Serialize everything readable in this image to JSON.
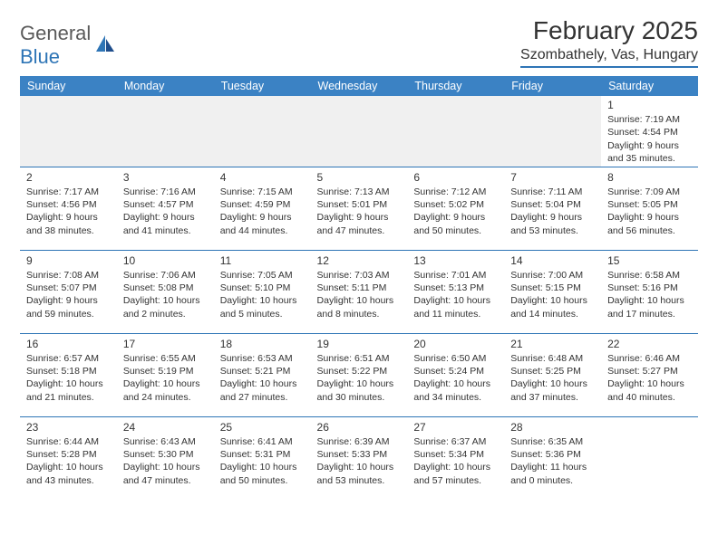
{
  "logo": {
    "text1": "General",
    "text2": "Blue"
  },
  "title": "February 2025",
  "location": "Szombathely, Vas, Hungary",
  "colors": {
    "accent": "#3b82c4",
    "border": "#2e75b6",
    "text": "#333333",
    "bg": "#ffffff",
    "empty": "#f0f0f0"
  },
  "weekdays": [
    "Sunday",
    "Monday",
    "Tuesday",
    "Wednesday",
    "Thursday",
    "Friday",
    "Saturday"
  ],
  "weeks": [
    [
      null,
      null,
      null,
      null,
      null,
      null,
      {
        "d": "1",
        "sr": "7:19 AM",
        "ss": "4:54 PM",
        "dl": "9 hours and 35 minutes."
      }
    ],
    [
      {
        "d": "2",
        "sr": "7:17 AM",
        "ss": "4:56 PM",
        "dl": "9 hours and 38 minutes."
      },
      {
        "d": "3",
        "sr": "7:16 AM",
        "ss": "4:57 PM",
        "dl": "9 hours and 41 minutes."
      },
      {
        "d": "4",
        "sr": "7:15 AM",
        "ss": "4:59 PM",
        "dl": "9 hours and 44 minutes."
      },
      {
        "d": "5",
        "sr": "7:13 AM",
        "ss": "5:01 PM",
        "dl": "9 hours and 47 minutes."
      },
      {
        "d": "6",
        "sr": "7:12 AM",
        "ss": "5:02 PM",
        "dl": "9 hours and 50 minutes."
      },
      {
        "d": "7",
        "sr": "7:11 AM",
        "ss": "5:04 PM",
        "dl": "9 hours and 53 minutes."
      },
      {
        "d": "8",
        "sr": "7:09 AM",
        "ss": "5:05 PM",
        "dl": "9 hours and 56 minutes."
      }
    ],
    [
      {
        "d": "9",
        "sr": "7:08 AM",
        "ss": "5:07 PM",
        "dl": "9 hours and 59 minutes."
      },
      {
        "d": "10",
        "sr": "7:06 AM",
        "ss": "5:08 PM",
        "dl": "10 hours and 2 minutes."
      },
      {
        "d": "11",
        "sr": "7:05 AM",
        "ss": "5:10 PM",
        "dl": "10 hours and 5 minutes."
      },
      {
        "d": "12",
        "sr": "7:03 AM",
        "ss": "5:11 PM",
        "dl": "10 hours and 8 minutes."
      },
      {
        "d": "13",
        "sr": "7:01 AM",
        "ss": "5:13 PM",
        "dl": "10 hours and 11 minutes."
      },
      {
        "d": "14",
        "sr": "7:00 AM",
        "ss": "5:15 PM",
        "dl": "10 hours and 14 minutes."
      },
      {
        "d": "15",
        "sr": "6:58 AM",
        "ss": "5:16 PM",
        "dl": "10 hours and 17 minutes."
      }
    ],
    [
      {
        "d": "16",
        "sr": "6:57 AM",
        "ss": "5:18 PM",
        "dl": "10 hours and 21 minutes."
      },
      {
        "d": "17",
        "sr": "6:55 AM",
        "ss": "5:19 PM",
        "dl": "10 hours and 24 minutes."
      },
      {
        "d": "18",
        "sr": "6:53 AM",
        "ss": "5:21 PM",
        "dl": "10 hours and 27 minutes."
      },
      {
        "d": "19",
        "sr": "6:51 AM",
        "ss": "5:22 PM",
        "dl": "10 hours and 30 minutes."
      },
      {
        "d": "20",
        "sr": "6:50 AM",
        "ss": "5:24 PM",
        "dl": "10 hours and 34 minutes."
      },
      {
        "d": "21",
        "sr": "6:48 AM",
        "ss": "5:25 PM",
        "dl": "10 hours and 37 minutes."
      },
      {
        "d": "22",
        "sr": "6:46 AM",
        "ss": "5:27 PM",
        "dl": "10 hours and 40 minutes."
      }
    ],
    [
      {
        "d": "23",
        "sr": "6:44 AM",
        "ss": "5:28 PM",
        "dl": "10 hours and 43 minutes."
      },
      {
        "d": "24",
        "sr": "6:43 AM",
        "ss": "5:30 PM",
        "dl": "10 hours and 47 minutes."
      },
      {
        "d": "25",
        "sr": "6:41 AM",
        "ss": "5:31 PM",
        "dl": "10 hours and 50 minutes."
      },
      {
        "d": "26",
        "sr": "6:39 AM",
        "ss": "5:33 PM",
        "dl": "10 hours and 53 minutes."
      },
      {
        "d": "27",
        "sr": "6:37 AM",
        "ss": "5:34 PM",
        "dl": "10 hours and 57 minutes."
      },
      {
        "d": "28",
        "sr": "6:35 AM",
        "ss": "5:36 PM",
        "dl": "11 hours and 0 minutes."
      },
      null
    ]
  ],
  "labels": {
    "sunrise": "Sunrise: ",
    "sunset": "Sunset: ",
    "daylight": "Daylight: "
  }
}
